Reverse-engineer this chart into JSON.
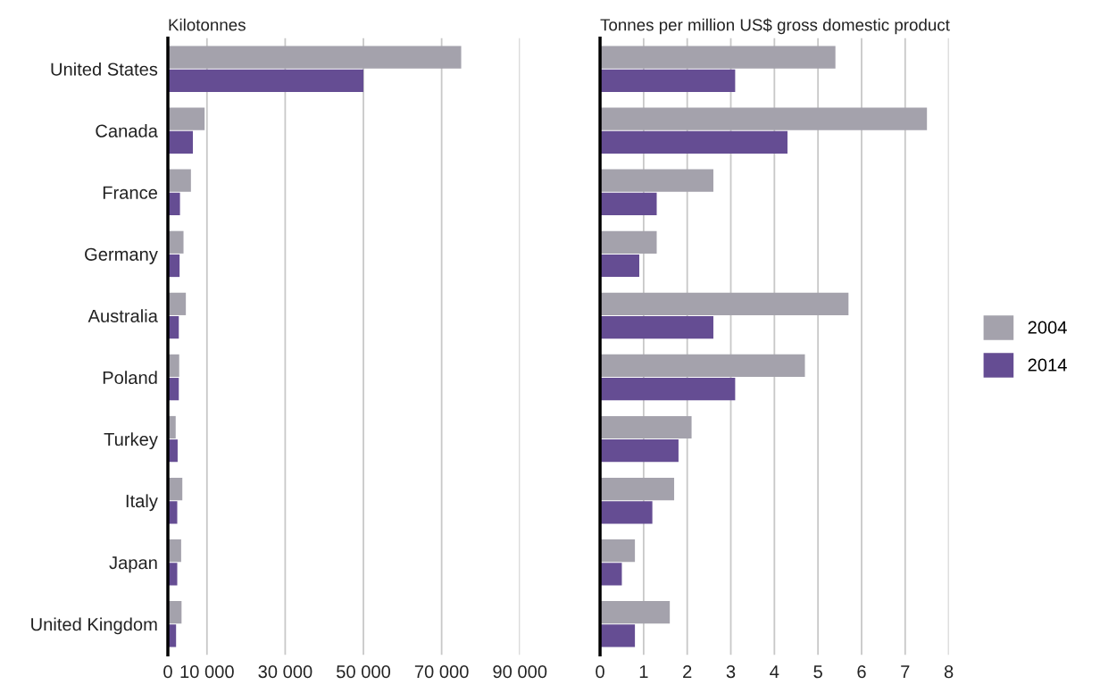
{
  "chart_data": [
    {
      "type": "bar",
      "orientation": "horizontal",
      "title": "Kilotonnes",
      "categories": [
        "United States",
        "Canada",
        "France",
        "Germany",
        "Australia",
        "Poland",
        "Turkey",
        "Italy",
        "Japan",
        "United Kingdom"
      ],
      "series": [
        {
          "name": "2004",
          "color": "#a4a2ac",
          "values": [
            75000,
            9400,
            5900,
            4000,
            4600,
            2900,
            2000,
            3700,
            3400,
            3500
          ]
        },
        {
          "name": "2014",
          "color": "#654d93",
          "values": [
            50000,
            6400,
            3100,
            3000,
            2800,
            2800,
            2500,
            2400,
            2400,
            2100
          ]
        }
      ],
      "xlim": [
        0,
        90000
      ],
      "xticks": [
        0,
        {
          "value": 10000,
          "label": "10 000"
        },
        {
          "value": 30000,
          "label": "30 000"
        },
        {
          "value": 50000,
          "label": "50 000"
        },
        {
          "value": 70000,
          "label": "70 000"
        },
        {
          "value": 90000,
          "label": "90 000"
        }
      ],
      "grid": "x",
      "legend": "right"
    },
    {
      "type": "bar",
      "orientation": "horizontal",
      "title": "Tonnes per million US$ gross domestic product",
      "categories": [
        null,
        null,
        null,
        null,
        null,
        null,
        null,
        null,
        null,
        null
      ],
      "series": [
        {
          "name": "2004",
          "color": "#a4a2ac",
          "values": [
            5.4,
            7.5,
            2.6,
            1.3,
            5.7,
            4.7,
            2.1,
            1.7,
            0.8,
            1.6
          ]
        },
        {
          "name": "2014",
          "color": "#654d93",
          "values": [
            3.1,
            4.3,
            1.3,
            0.9,
            2.6,
            3.1,
            1.8,
            1.2,
            0.5,
            0.8
          ]
        }
      ],
      "xlim": [
        0,
        8
      ],
      "xticks": [
        0,
        1,
        2,
        3,
        4,
        5,
        6,
        7,
        8
      ],
      "grid": "x",
      "tick_labels": "x"
    }
  ]
}
